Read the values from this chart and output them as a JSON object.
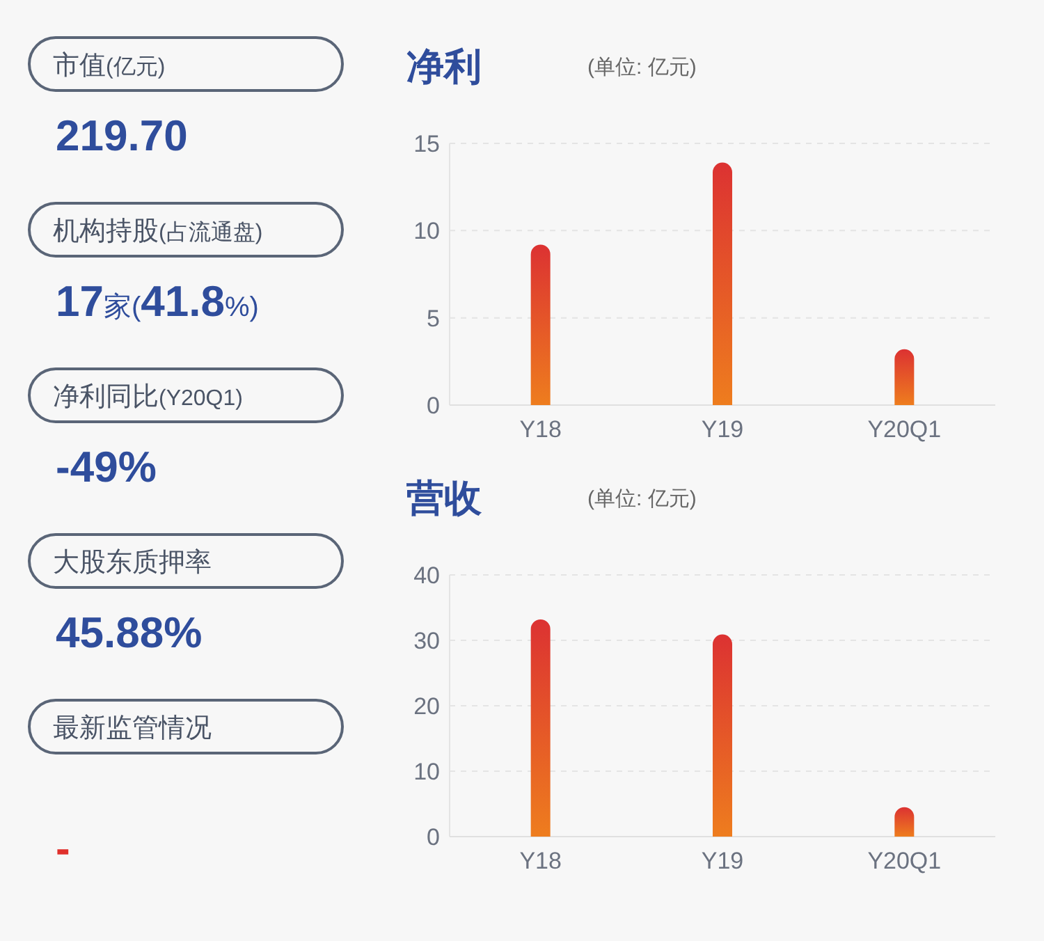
{
  "chart_data": [
    {
      "type": "other",
      "annotations": [
        "市值(亿元)",
        "219.70",
        "机构持股(占流通盘)",
        "17家(41.8%)",
        "净利同比(Y20Q1)",
        "-49%",
        "大股东质押率",
        "45.88%",
        "最新监管情况",
        "-"
      ]
    },
    {
      "type": "bar",
      "title": "净利",
      "subtitle": "(单位: 亿元)",
      "categories": [
        "Y18",
        "Y19",
        "Y20Q1"
      ],
      "values": [
        9.2,
        13.9,
        3.2
      ],
      "color": "#dc3232",
      "ylim": [
        0,
        15
      ],
      "yticks": [
        0,
        5,
        10,
        15
      ],
      "grid": "y"
    },
    {
      "type": "bar",
      "title": "营收",
      "subtitle": "(单位: 亿元)",
      "categories": [
        "Y18",
        "Y19",
        "Y20Q1"
      ],
      "values": [
        33.2,
        30.9,
        4.5
      ],
      "color": "#dc3232",
      "ylim": [
        0,
        40
      ],
      "yticks": [
        0,
        10,
        20,
        30,
        40
      ],
      "grid": "y"
    }
  ]
}
